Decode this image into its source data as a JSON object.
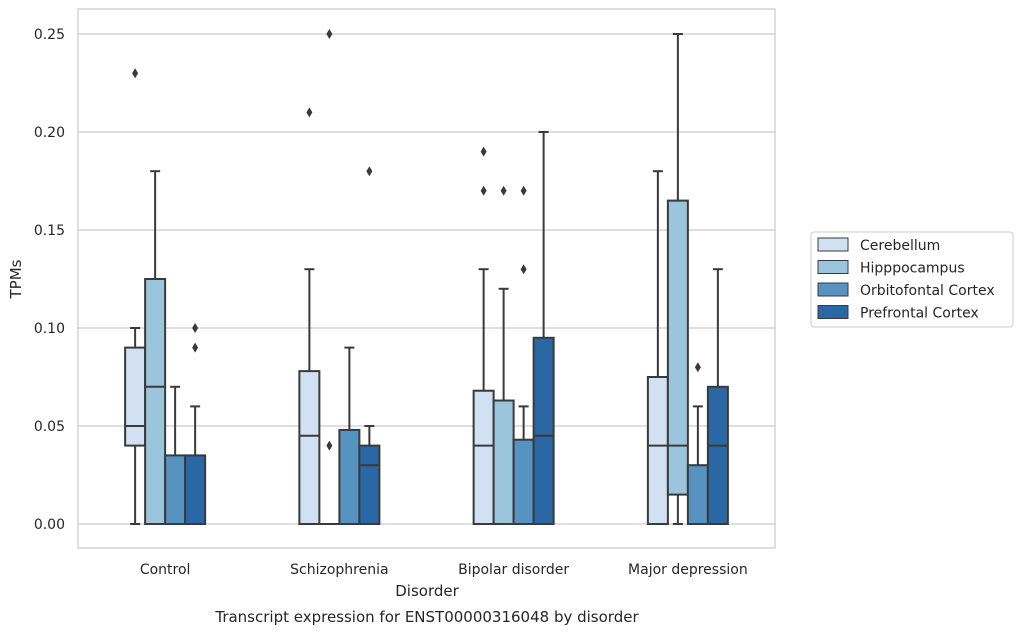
{
  "chart_data": {
    "type": "box",
    "title": "",
    "caption": "Transcript expression for ENST00000316048 by disorder",
    "xlabel": "Disorder",
    "ylabel": "TPMs",
    "ylim": [
      -0.012,
      0.262
    ],
    "yticks": [
      0.0,
      0.05,
      0.1,
      0.15,
      0.2,
      0.25
    ],
    "ytick_labels": [
      "0.00",
      "0.05",
      "0.10",
      "0.15",
      "0.20",
      "0.25"
    ],
    "grid": "horizontal",
    "legend_position": "right",
    "categories": [
      "Control",
      "Schizophrenia",
      "Bipolar disorder",
      "Major depression"
    ],
    "series": [
      {
        "name": "Cerebellum",
        "color": "#d1e1f1",
        "boxes": [
          {
            "min": 0.0,
            "q1": 0.04,
            "median": 0.05,
            "q3": 0.09,
            "max": 0.1,
            "outliers": [
              0.23
            ]
          },
          {
            "min": 0.0,
            "q1": 0.0,
            "median": 0.045,
            "q3": 0.078,
            "max": 0.13,
            "outliers": [
              0.21
            ]
          },
          {
            "min": 0.0,
            "q1": 0.0,
            "median": 0.04,
            "q3": 0.068,
            "max": 0.13,
            "outliers": [
              0.17,
              0.19
            ]
          },
          {
            "min": 0.0,
            "q1": 0.0,
            "median": 0.04,
            "q3": 0.075,
            "max": 0.18,
            "outliers": []
          }
        ]
      },
      {
        "name": "Hipppocampus",
        "color": "#9bc4dd",
        "boxes": [
          {
            "min": 0.0,
            "q1": 0.0,
            "median": 0.07,
            "q3": 0.125,
            "max": 0.18,
            "outliers": []
          },
          {
            "min": 0.0,
            "q1": 0.0,
            "median": 0.0,
            "q3": 0.0,
            "max": 0.0,
            "outliers": [
              0.25,
              0.04
            ]
          },
          {
            "min": 0.0,
            "q1": 0.0,
            "median": 0.0,
            "q3": 0.063,
            "max": 0.12,
            "outliers": [
              0.17
            ]
          },
          {
            "min": 0.0,
            "q1": 0.015,
            "median": 0.04,
            "q3": 0.165,
            "max": 0.25,
            "outliers": []
          }
        ]
      },
      {
        "name": "Orbitofontal Cortex",
        "color": "#5693c1",
        "boxes": [
          {
            "min": 0.0,
            "q1": 0.0,
            "median": 0.0,
            "q3": 0.035,
            "max": 0.07,
            "outliers": []
          },
          {
            "min": 0.0,
            "q1": 0.0,
            "median": 0.0,
            "q3": 0.048,
            "max": 0.09,
            "outliers": []
          },
          {
            "min": 0.0,
            "q1": 0.0,
            "median": 0.0,
            "q3": 0.043,
            "max": 0.06,
            "outliers": [
              0.13,
              0.17
            ]
          },
          {
            "min": 0.0,
            "q1": 0.0,
            "median": 0.0,
            "q3": 0.03,
            "max": 0.06,
            "outliers": [
              0.08
            ]
          }
        ]
      },
      {
        "name": "Prefrontal Cortex",
        "color": "#2a67a5",
        "boxes": [
          {
            "min": 0.0,
            "q1": 0.0,
            "median": 0.0,
            "q3": 0.035,
            "max": 0.06,
            "outliers": [
              0.09,
              0.1
            ]
          },
          {
            "min": 0.0,
            "q1": 0.0,
            "median": 0.03,
            "q3": 0.04,
            "max": 0.05,
            "outliers": [
              0.18
            ]
          },
          {
            "min": 0.0,
            "q1": 0.0,
            "median": 0.045,
            "q3": 0.095,
            "max": 0.2,
            "outliers": []
          },
          {
            "min": 0.0,
            "q1": 0.0,
            "median": 0.04,
            "q3": 0.07,
            "max": 0.13,
            "outliers": []
          }
        ]
      }
    ]
  }
}
